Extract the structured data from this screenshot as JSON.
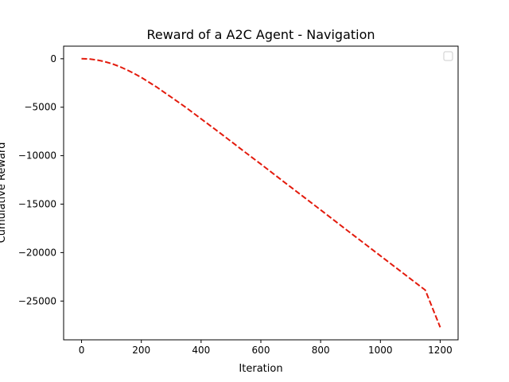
{
  "chart_data": {
    "type": "line",
    "title": "Reward of a A2C Agent - Navigation",
    "xlabel": "Iteration",
    "ylabel": "Cumulative Reward",
    "xlim": [
      -60,
      1260
    ],
    "ylim": [
      -29000,
      1300
    ],
    "xticks": [
      0,
      200,
      400,
      600,
      800,
      1000,
      1200
    ],
    "yticks": [
      0,
      -5000,
      -10000,
      -15000,
      -20000,
      -25000
    ],
    "xtick_labels": [
      "0",
      "200",
      "400",
      "600",
      "800",
      "1000",
      "1200"
    ],
    "ytick_labels": [
      "0",
      "−5000",
      "−10000",
      "−15000",
      "−20000",
      "−25000"
    ],
    "legend": {
      "placement": "top-right",
      "entries": []
    },
    "grid": false,
    "series": [
      {
        "color": "#e31a0c",
        "line_style": "dashed",
        "x": [
          0,
          25,
          50,
          75,
          100,
          125,
          150,
          175,
          200,
          250,
          300,
          350,
          400,
          450,
          500,
          550,
          600,
          650,
          700,
          750,
          800,
          850,
          900,
          950,
          1000,
          1050,
          1100,
          1150,
          1200
        ],
        "y": [
          0,
          -25,
          -120,
          -280,
          -500,
          -780,
          -1120,
          -1500,
          -1930,
          -2900,
          -3960,
          -5050,
          -6200,
          -7350,
          -8520,
          -9700,
          -10870,
          -12060,
          -13240,
          -14420,
          -15600,
          -16780,
          -17970,
          -19150,
          -20330,
          -21510,
          -22690,
          -23870,
          -27700
        ]
      }
    ]
  }
}
